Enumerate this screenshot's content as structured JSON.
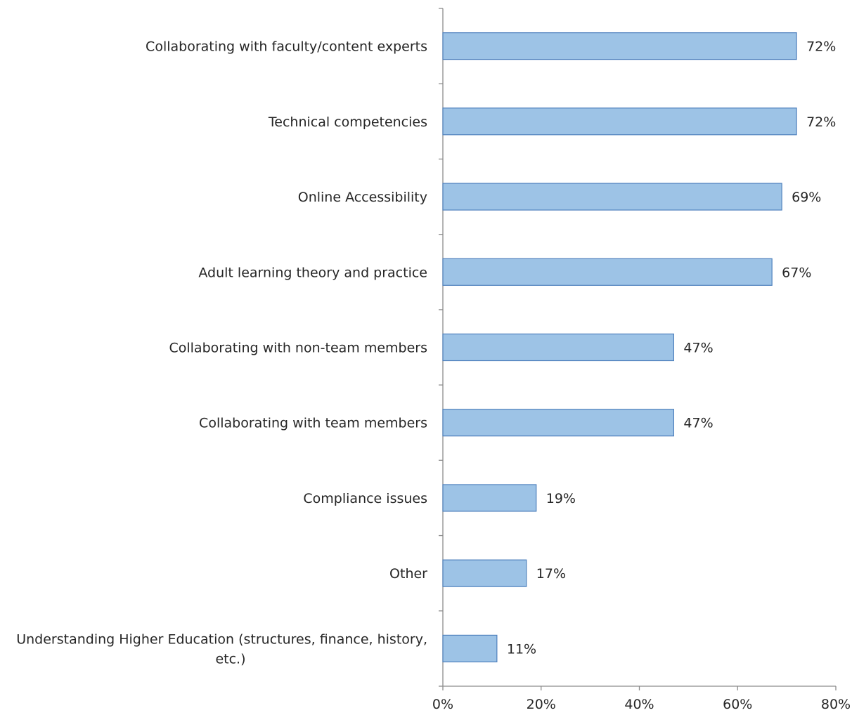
{
  "chart_data": {
    "type": "bar",
    "orientation": "horizontal",
    "title": "",
    "xlabel": "",
    "ylabel": "",
    "categories": [
      [
        "Collaborating with faculty/content experts"
      ],
      [
        "Technical competencies"
      ],
      [
        "Online Accessibility"
      ],
      [
        "Adult learning theory and practice"
      ],
      [
        "Collaborating with non-team members"
      ],
      [
        "Collaborating with team members"
      ],
      [
        "Compliance issues"
      ],
      [
        "Other"
      ],
      [
        "Understanding Higher Education (structures, finance, history,",
        "etc.)"
      ]
    ],
    "values": [
      72,
      72,
      69,
      67,
      47,
      47,
      19,
      17,
      11
    ],
    "data_labels": [
      "72%",
      "72%",
      "69%",
      "67%",
      "47%",
      "47%",
      "19%",
      "17%",
      "11%"
    ],
    "xlim": [
      0,
      80
    ],
    "x_ticks": [
      0,
      20,
      40,
      60,
      80
    ],
    "x_tick_labels": [
      "0%",
      "20%",
      "40%",
      "60%",
      "80%"
    ],
    "grid": false,
    "legend": "none",
    "colors": {
      "bar_fill": "#9dc3e6",
      "bar_stroke": "#4f81bd",
      "axis": "#8c8c8c",
      "text": "#262626"
    }
  }
}
